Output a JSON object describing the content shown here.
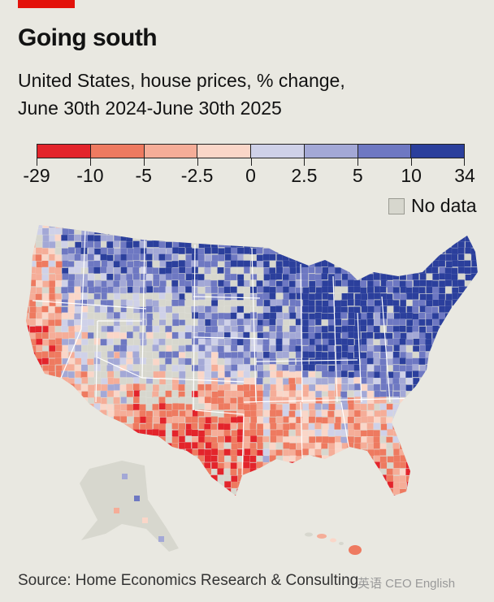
{
  "header": {
    "title": "Going south",
    "subtitle_line1": "United States, house prices, % change,",
    "subtitle_line2": "June 30th 2024-June 30th 2025"
  },
  "legend": {
    "bins": [
      {
        "color": "#e3242b"
      },
      {
        "color": "#ee7a60"
      },
      {
        "color": "#f5ad98"
      },
      {
        "color": "#fad6c8"
      },
      {
        "color": "#cfd1e8"
      },
      {
        "color": "#a3a8d6"
      },
      {
        "color": "#6e78c2"
      },
      {
        "color": "#2b3f9c"
      }
    ],
    "tick_labels": [
      "-29",
      "-10",
      "-5",
      "-2.5",
      "0",
      "2.5",
      "5",
      "10",
      "34"
    ],
    "no_data_label": "No data",
    "no_data_color": "#d7d7ce"
  },
  "map": {
    "region": "United States counties",
    "scale": "diverging red-blue",
    "regional_pattern": [
      {
        "area": "West coast (California)",
        "tendency": "falling"
      },
      {
        "area": "Texas and Gulf coast",
        "tendency": "falling"
      },
      {
        "area": "Florida",
        "tendency": "falling"
      },
      {
        "area": "Southeast",
        "tendency": "falling"
      },
      {
        "area": "Midwest and Great Lakes",
        "tendency": "rising"
      },
      {
        "area": "Northeast",
        "tendency": "rising"
      },
      {
        "area": "Northern plains",
        "tendency": "rising"
      },
      {
        "area": "Mountain west interior",
        "tendency": "mostly no data"
      },
      {
        "area": "Alaska",
        "tendency": "mostly no data"
      }
    ]
  },
  "footer": {
    "source": "Source: Home Economics Research & Consulting",
    "watermark": "英语 CEO English"
  }
}
